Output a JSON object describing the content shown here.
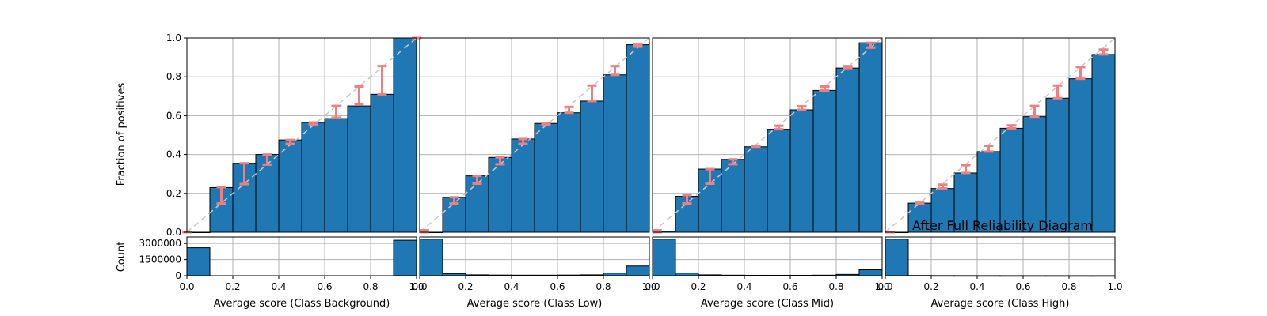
{
  "figure": {
    "title": "After Full Reliability Diagram",
    "ylabel_reliability": "Fraction of positives",
    "ylabel_count": "Count"
  },
  "chart_data": [
    {
      "type": "bar",
      "panel": "reliability",
      "class": "Class Background",
      "xlabel": "Average score (Class Background)",
      "bin_edges": [
        0.0,
        0.1,
        0.2,
        0.3,
        0.4,
        0.5,
        0.6,
        0.7,
        0.8,
        0.9,
        1.0
      ],
      "values": [
        0.0,
        0.23,
        0.355,
        0.4,
        0.475,
        0.565,
        0.585,
        0.65,
        0.71,
        1.0
      ],
      "error_bars": [
        {
          "x": 0.0,
          "low": 0.0,
          "high": 0.0
        },
        {
          "x": 0.15,
          "low": 0.148,
          "high": 0.232
        },
        {
          "x": 0.25,
          "low": 0.248,
          "high": 0.355
        },
        {
          "x": 0.35,
          "low": 0.348,
          "high": 0.4
        },
        {
          "x": 0.45,
          "low": 0.455,
          "high": 0.475
        },
        {
          "x": 0.55,
          "low": 0.552,
          "high": 0.565
        },
        {
          "x": 0.65,
          "low": 0.59,
          "high": 0.65
        },
        {
          "x": 0.75,
          "low": 0.66,
          "high": 0.75
        },
        {
          "x": 0.85,
          "low": 0.71,
          "high": 0.855
        },
        {
          "x": 1.0,
          "low": 1.0,
          "high": 1.0
        }
      ],
      "xlim": [
        0,
        1
      ],
      "ylim": [
        0,
        1
      ],
      "xticks": [
        "0.0",
        "0.2",
        "0.4",
        "0.6",
        "0.8",
        "1.0"
      ],
      "yticks": [
        "0.0",
        "0.2",
        "0.4",
        "0.6",
        "0.8",
        "1.0"
      ],
      "grid": true,
      "diagonal": true
    },
    {
      "type": "bar",
      "panel": "reliability",
      "class": "Class Low",
      "xlabel": "Average score (Class Low)",
      "bin_edges": [
        0.0,
        0.1,
        0.2,
        0.3,
        0.4,
        0.5,
        0.6,
        0.7,
        0.8,
        0.9,
        1.0
      ],
      "values": [
        0.0,
        0.18,
        0.29,
        0.385,
        0.48,
        0.56,
        0.615,
        0.675,
        0.81,
        0.965
      ],
      "error_bars": [
        {
          "x": 0.02,
          "low": 0.0,
          "high": 0.01
        },
        {
          "x": 0.15,
          "low": 0.148,
          "high": 0.18
        },
        {
          "x": 0.25,
          "low": 0.25,
          "high": 0.29
        },
        {
          "x": 0.35,
          "low": 0.35,
          "high": 0.385
        },
        {
          "x": 0.45,
          "low": 0.455,
          "high": 0.48
        },
        {
          "x": 0.55,
          "low": 0.552,
          "high": 0.56
        },
        {
          "x": 0.65,
          "low": 0.615,
          "high": 0.645
        },
        {
          "x": 0.75,
          "low": 0.675,
          "high": 0.755
        },
        {
          "x": 0.85,
          "low": 0.81,
          "high": 0.855
        },
        {
          "x": 0.95,
          "low": 0.955,
          "high": 0.965
        }
      ],
      "xlim": [
        0,
        1
      ],
      "ylim": [
        0,
        1
      ],
      "xticks": [
        "0.0",
        "0.2",
        "0.4",
        "0.6",
        "0.8",
        "1.0"
      ],
      "grid": true,
      "diagonal": true
    },
    {
      "type": "bar",
      "panel": "reliability",
      "class": "Class Mid",
      "xlabel": "Average score (Class Mid)",
      "bin_edges": [
        0.0,
        0.1,
        0.2,
        0.3,
        0.4,
        0.5,
        0.6,
        0.7,
        0.8,
        0.9,
        1.0
      ],
      "values": [
        0.005,
        0.185,
        0.325,
        0.375,
        0.44,
        0.53,
        0.63,
        0.73,
        0.845,
        0.975
      ],
      "error_bars": [
        {
          "x": 0.02,
          "low": 0.0,
          "high": 0.01
        },
        {
          "x": 0.15,
          "low": 0.148,
          "high": 0.19
        },
        {
          "x": 0.25,
          "low": 0.25,
          "high": 0.325
        },
        {
          "x": 0.35,
          "low": 0.35,
          "high": 0.375
        },
        {
          "x": 0.45,
          "low": 0.44,
          "high": 0.445
        },
        {
          "x": 0.55,
          "low": 0.53,
          "high": 0.548
        },
        {
          "x": 0.65,
          "low": 0.63,
          "high": 0.648
        },
        {
          "x": 0.75,
          "low": 0.73,
          "high": 0.75
        },
        {
          "x": 0.85,
          "low": 0.845,
          "high": 0.855
        },
        {
          "x": 0.95,
          "low": 0.95,
          "high": 0.975
        }
      ],
      "xlim": [
        0,
        1
      ],
      "ylim": [
        0,
        1
      ],
      "xticks": [
        "0.0",
        "0.2",
        "0.4",
        "0.6",
        "0.8",
        "1.0"
      ],
      "grid": true,
      "diagonal": true
    },
    {
      "type": "bar",
      "panel": "reliability",
      "class": "Class High",
      "xlabel": "Average score (Class High)",
      "bin_edges": [
        0.0,
        0.1,
        0.2,
        0.3,
        0.4,
        0.5,
        0.6,
        0.7,
        0.8,
        0.9,
        1.0
      ],
      "values": [
        0.0,
        0.15,
        0.225,
        0.305,
        0.415,
        0.535,
        0.595,
        0.69,
        0.79,
        0.915
      ],
      "error_bars": [
        {
          "x": 0.02,
          "low": 0.0,
          "high": 0.0
        },
        {
          "x": 0.15,
          "low": 0.145,
          "high": 0.152
        },
        {
          "x": 0.25,
          "low": 0.225,
          "high": 0.245
        },
        {
          "x": 0.35,
          "low": 0.305,
          "high": 0.345
        },
        {
          "x": 0.45,
          "low": 0.415,
          "high": 0.445
        },
        {
          "x": 0.55,
          "low": 0.535,
          "high": 0.55
        },
        {
          "x": 0.65,
          "low": 0.595,
          "high": 0.65
        },
        {
          "x": 0.75,
          "low": 0.69,
          "high": 0.755
        },
        {
          "x": 0.85,
          "low": 0.79,
          "high": 0.85
        },
        {
          "x": 0.95,
          "low": 0.915,
          "high": 0.94
        }
      ],
      "xlim": [
        0,
        1
      ],
      "ylim": [
        0,
        1
      ],
      "xticks": [
        "0.0",
        "0.2",
        "0.4",
        "0.6",
        "0.8",
        "1.0"
      ],
      "grid": true,
      "diagonal": true
    },
    {
      "type": "bar",
      "panel": "count",
      "class": "Class Background",
      "bin_edges": [
        0.0,
        0.1,
        0.2,
        0.3,
        0.4,
        0.5,
        0.6,
        0.7,
        0.8,
        0.9,
        1.0
      ],
      "values": [
        2600000,
        0,
        0,
        0,
        0,
        0,
        0,
        0,
        0,
        3300000
      ],
      "ylim": [
        0,
        3600000
      ],
      "yticks": [
        "0",
        "1500000",
        "3000000"
      ]
    },
    {
      "type": "bar",
      "panel": "count",
      "class": "Class Low",
      "bin_edges": [
        0.0,
        0.1,
        0.2,
        0.3,
        0.4,
        0.5,
        0.6,
        0.7,
        0.8,
        0.9,
        1.0
      ],
      "values": [
        3400000,
        200000,
        80000,
        60000,
        50000,
        50000,
        60000,
        80000,
        250000,
        900000
      ],
      "ylim": [
        0,
        3600000
      ]
    },
    {
      "type": "bar",
      "panel": "count",
      "class": "Class Mid",
      "bin_edges": [
        0.0,
        0.1,
        0.2,
        0.3,
        0.4,
        0.5,
        0.6,
        0.7,
        0.8,
        0.9,
        1.0
      ],
      "values": [
        3400000,
        250000,
        80000,
        50000,
        40000,
        40000,
        40000,
        50000,
        120000,
        550000
      ],
      "ylim": [
        0,
        3600000
      ]
    },
    {
      "type": "bar",
      "panel": "count",
      "class": "Class High",
      "bin_edges": [
        0.0,
        0.1,
        0.2,
        0.3,
        0.4,
        0.5,
        0.6,
        0.7,
        0.8,
        0.9,
        1.0
      ],
      "values": [
        3400000,
        20000,
        10000,
        8000,
        6000,
        5000,
        4000,
        3000,
        2000,
        2000
      ],
      "ylim": [
        0,
        3600000
      ]
    }
  ],
  "style": {
    "bar_color": "#1f77b4",
    "bar_edge": "#000000",
    "error_color": "#f08080",
    "grid_color": "#b0b0b0",
    "diagonal_color": "#c8c8c8"
  }
}
